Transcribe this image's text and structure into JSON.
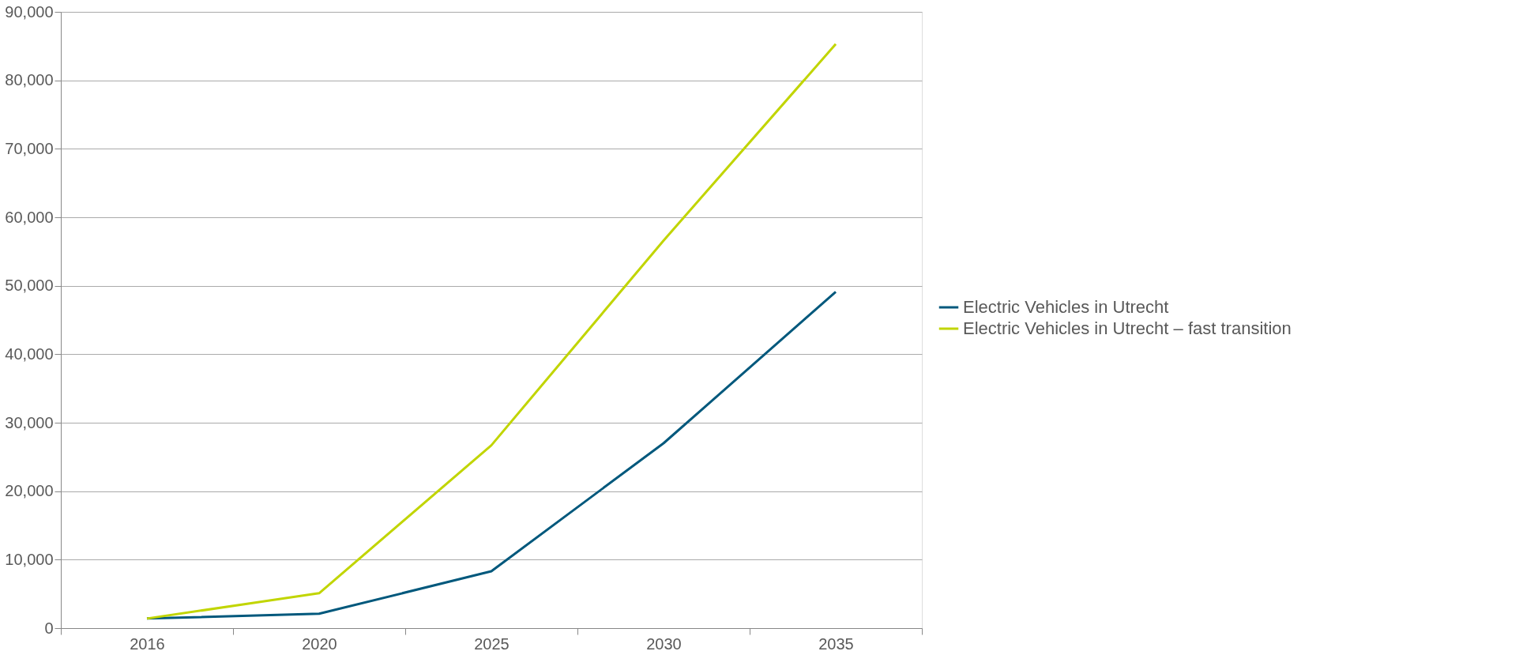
{
  "chart_data": {
    "type": "line",
    "categories": [
      "2016",
      "2020",
      "2025",
      "2030",
      "2035"
    ],
    "series": [
      {
        "name": "Electric Vehicles in Utrecht",
        "color": "#00587c",
        "values": [
          1400,
          2100,
          8300,
          27000,
          49100
        ]
      },
      {
        "name": "Electric Vehicles in Utrecht – fast transition",
        "color": "#c1d500",
        "values": [
          1400,
          5100,
          26700,
          56600,
          85300
        ]
      }
    ],
    "ylim": [
      0,
      90000
    ],
    "yticks": [
      0,
      {
        "value": 10000,
        "label": "10,000"
      },
      {
        "value": 20000,
        "label": "20,000"
      },
      {
        "value": 30000,
        "label": "30,000"
      },
      {
        "value": 40000,
        "label": "40,000"
      },
      {
        "value": 50000,
        "label": "50,000"
      },
      {
        "value": 60000,
        "label": "60,000"
      },
      {
        "value": 70000,
        "label": "70,000"
      },
      {
        "value": 80000,
        "label": "80,000"
      },
      {
        "value": 90000,
        "label": "90,000"
      }
    ],
    "grid": "y",
    "legend": "right",
    "marker": "none",
    "line_style": "solid"
  }
}
